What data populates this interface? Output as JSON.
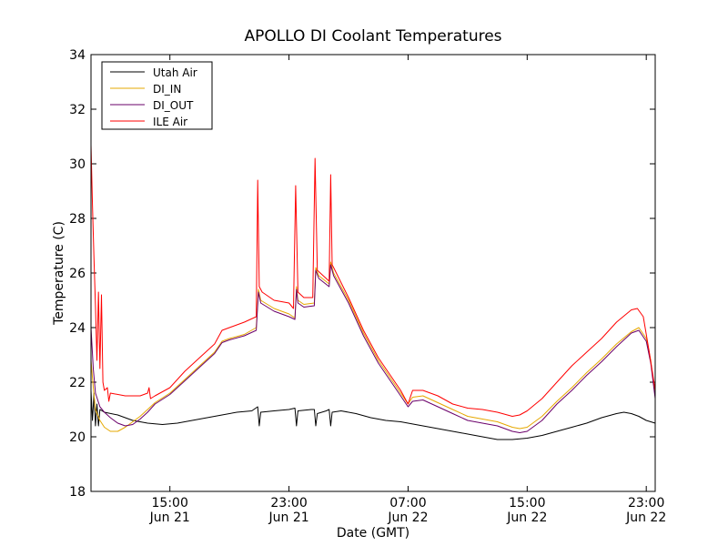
{
  "chart_data": {
    "type": "line",
    "title": "APOLLO DI Coolant Temperatures",
    "xlabel": "Date (GMT)",
    "ylabel": "Temperature (C)",
    "x_unit": "hours",
    "xlim": [
      9.7,
      47.6
    ],
    "ylim": [
      18,
      34
    ],
    "yticks": [
      18,
      20,
      22,
      24,
      26,
      28,
      30,
      32,
      34
    ],
    "xticks": [
      {
        "x": 15,
        "time": "15:00",
        "date": "Jun 21"
      },
      {
        "x": 23,
        "time": "23:00",
        "date": "Jun 21"
      },
      {
        "x": 31,
        "time": "07:00",
        "date": "Jun 22"
      },
      {
        "x": 39,
        "time": "15:00",
        "date": "Jun 22"
      },
      {
        "x": 47,
        "time": "23:00",
        "date": "Jun 22"
      }
    ],
    "legend_position": "top-left",
    "series": [
      {
        "name": "Utah Air",
        "color": "#000000",
        "points": [
          [
            9.7,
            21.7
          ],
          [
            9.8,
            20.6
          ],
          [
            9.9,
            21.6
          ],
          [
            10.0,
            20.4
          ],
          [
            10.1,
            21.2
          ],
          [
            10.2,
            20.4
          ],
          [
            10.3,
            21.0
          ],
          [
            10.6,
            20.9
          ],
          [
            11.5,
            20.8
          ],
          [
            12.5,
            20.6
          ],
          [
            13.5,
            20.5
          ],
          [
            14.5,
            20.45
          ],
          [
            15.5,
            20.5
          ],
          [
            16.5,
            20.6
          ],
          [
            17.5,
            20.7
          ],
          [
            18.5,
            20.8
          ],
          [
            19.5,
            20.9
          ],
          [
            20.5,
            20.95
          ],
          [
            20.9,
            21.1
          ],
          [
            21.0,
            20.4
          ],
          [
            21.1,
            20.9
          ],
          [
            22,
            20.95
          ],
          [
            23.0,
            21.0
          ],
          [
            23.4,
            21.05
          ],
          [
            23.5,
            20.4
          ],
          [
            23.6,
            20.95
          ],
          [
            24.5,
            21.0
          ],
          [
            24.7,
            21.0
          ],
          [
            24.8,
            20.4
          ],
          [
            24.9,
            20.85
          ],
          [
            25.5,
            20.95
          ],
          [
            25.7,
            21.0
          ],
          [
            25.8,
            20.4
          ],
          [
            25.9,
            20.9
          ],
          [
            26.5,
            20.95
          ],
          [
            27.5,
            20.85
          ],
          [
            28.5,
            20.7
          ],
          [
            29.5,
            20.6
          ],
          [
            30.5,
            20.55
          ],
          [
            31.5,
            20.45
          ],
          [
            32.5,
            20.35
          ],
          [
            33.5,
            20.25
          ],
          [
            34.5,
            20.15
          ],
          [
            35.5,
            20.05
          ],
          [
            36.5,
            19.95
          ],
          [
            37.0,
            19.9
          ],
          [
            38.0,
            19.9
          ],
          [
            39.0,
            19.95
          ],
          [
            40.0,
            20.05
          ],
          [
            41.0,
            20.2
          ],
          [
            42.0,
            20.35
          ],
          [
            43.0,
            20.5
          ],
          [
            44.0,
            20.7
          ],
          [
            45.0,
            20.85
          ],
          [
            45.5,
            20.9
          ],
          [
            46.0,
            20.85
          ],
          [
            46.5,
            20.75
          ],
          [
            47.0,
            20.6
          ],
          [
            47.6,
            20.5
          ]
        ]
      },
      {
        "name": "DI_IN",
        "color": "#e6a800",
        "points": [
          [
            9.7,
            22.8
          ],
          [
            9.85,
            21.8
          ],
          [
            10.0,
            21.0
          ],
          [
            10.3,
            20.6
          ],
          [
            10.6,
            20.35
          ],
          [
            11.0,
            20.2
          ],
          [
            11.5,
            20.2
          ],
          [
            12.0,
            20.35
          ],
          [
            12.5,
            20.55
          ],
          [
            13.0,
            20.75
          ],
          [
            13.5,
            21.0
          ],
          [
            14.0,
            21.25
          ],
          [
            15.0,
            21.6
          ],
          [
            16.0,
            22.1
          ],
          [
            17.0,
            22.6
          ],
          [
            18.0,
            23.1
          ],
          [
            18.5,
            23.5
          ],
          [
            19.0,
            23.6
          ],
          [
            20.0,
            23.75
          ],
          [
            20.8,
            24.0
          ],
          [
            20.95,
            25.4
          ],
          [
            21.1,
            25.0
          ],
          [
            22.0,
            24.7
          ],
          [
            23.0,
            24.5
          ],
          [
            23.4,
            24.35
          ],
          [
            23.5,
            25.5
          ],
          [
            23.6,
            25.0
          ],
          [
            24.0,
            24.85
          ],
          [
            24.7,
            24.9
          ],
          [
            24.8,
            26.2
          ],
          [
            25.0,
            25.9
          ],
          [
            25.7,
            25.6
          ],
          [
            25.8,
            26.4
          ],
          [
            26.0,
            26.0
          ],
          [
            27.0,
            25.0
          ],
          [
            28.0,
            23.8
          ],
          [
            29.0,
            22.8
          ],
          [
            30.0,
            22.0
          ],
          [
            30.5,
            21.6
          ],
          [
            31.0,
            21.2
          ],
          [
            31.3,
            21.45
          ],
          [
            32.0,
            21.5
          ],
          [
            33.0,
            21.25
          ],
          [
            34.0,
            21.0
          ],
          [
            35.0,
            20.75
          ],
          [
            36.0,
            20.65
          ],
          [
            37.0,
            20.55
          ],
          [
            38.0,
            20.35
          ],
          [
            38.5,
            20.3
          ],
          [
            39.0,
            20.35
          ],
          [
            40.0,
            20.75
          ],
          [
            41.0,
            21.3
          ],
          [
            42.0,
            21.8
          ],
          [
            43.0,
            22.35
          ],
          [
            44.0,
            22.85
          ],
          [
            45.0,
            23.4
          ],
          [
            46.0,
            23.85
          ],
          [
            46.5,
            24.0
          ],
          [
            47.0,
            23.6
          ],
          [
            47.3,
            22.8
          ],
          [
            47.6,
            21.5
          ]
        ]
      },
      {
        "name": "DI_OUT",
        "color": "#6a006a",
        "points": [
          [
            9.7,
            24.0
          ],
          [
            9.85,
            22.5
          ],
          [
            10.0,
            21.6
          ],
          [
            10.3,
            21.1
          ],
          [
            10.6,
            20.9
          ],
          [
            11.0,
            20.7
          ],
          [
            11.5,
            20.5
          ],
          [
            12.0,
            20.4
          ],
          [
            12.5,
            20.45
          ],
          [
            13.0,
            20.65
          ],
          [
            13.5,
            20.9
          ],
          [
            14.0,
            21.2
          ],
          [
            15.0,
            21.55
          ],
          [
            16.0,
            22.05
          ],
          [
            17.0,
            22.55
          ],
          [
            18.0,
            23.05
          ],
          [
            18.5,
            23.45
          ],
          [
            19.0,
            23.55
          ],
          [
            20.0,
            23.7
          ],
          [
            20.8,
            23.9
          ],
          [
            20.95,
            25.3
          ],
          [
            21.1,
            24.9
          ],
          [
            22.0,
            24.6
          ],
          [
            23.0,
            24.4
          ],
          [
            23.4,
            24.3
          ],
          [
            23.5,
            25.4
          ],
          [
            23.6,
            24.9
          ],
          [
            24.0,
            24.75
          ],
          [
            24.7,
            24.8
          ],
          [
            24.8,
            26.1
          ],
          [
            25.0,
            25.8
          ],
          [
            25.7,
            25.5
          ],
          [
            25.8,
            26.3
          ],
          [
            26.0,
            25.9
          ],
          [
            27.0,
            24.9
          ],
          [
            28.0,
            23.7
          ],
          [
            29.0,
            22.7
          ],
          [
            30.0,
            21.9
          ],
          [
            30.5,
            21.5
          ],
          [
            31.0,
            21.1
          ],
          [
            31.3,
            21.3
          ],
          [
            32.0,
            21.35
          ],
          [
            33.0,
            21.1
          ],
          [
            34.0,
            20.85
          ],
          [
            35.0,
            20.6
          ],
          [
            36.0,
            20.5
          ],
          [
            37.0,
            20.4
          ],
          [
            38.0,
            20.2
          ],
          [
            38.5,
            20.15
          ],
          [
            39.0,
            20.2
          ],
          [
            40.0,
            20.6
          ],
          [
            41.0,
            21.2
          ],
          [
            42.0,
            21.7
          ],
          [
            43.0,
            22.25
          ],
          [
            44.0,
            22.75
          ],
          [
            45.0,
            23.3
          ],
          [
            46.0,
            23.8
          ],
          [
            46.5,
            23.9
          ],
          [
            47.0,
            23.5
          ],
          [
            47.3,
            22.7
          ],
          [
            47.6,
            21.4
          ]
        ]
      },
      {
        "name": "ILE Air",
        "color": "#ff0000",
        "points": [
          [
            9.7,
            30.7
          ],
          [
            9.8,
            28.5
          ],
          [
            9.9,
            26.5
          ],
          [
            10.0,
            24.8
          ],
          [
            10.1,
            22.8
          ],
          [
            10.2,
            25.3
          ],
          [
            10.3,
            22.5
          ],
          [
            10.4,
            25.2
          ],
          [
            10.5,
            22.0
          ],
          [
            10.6,
            21.7
          ],
          [
            10.8,
            21.8
          ],
          [
            10.9,
            21.3
          ],
          [
            11.0,
            21.6
          ],
          [
            12.0,
            21.5
          ],
          [
            13.0,
            21.5
          ],
          [
            13.5,
            21.6
          ],
          [
            13.6,
            21.8
          ],
          [
            13.7,
            21.4
          ],
          [
            14.0,
            21.5
          ],
          [
            15.0,
            21.8
          ],
          [
            16.0,
            22.4
          ],
          [
            17.0,
            22.9
          ],
          [
            18.0,
            23.4
          ],
          [
            18.5,
            23.9
          ],
          [
            19.0,
            24.0
          ],
          [
            20.0,
            24.2
          ],
          [
            20.8,
            24.4
          ],
          [
            20.9,
            29.4
          ],
          [
            21.0,
            25.5
          ],
          [
            21.2,
            25.3
          ],
          [
            22.0,
            25.0
          ],
          [
            23.0,
            24.9
          ],
          [
            23.3,
            24.7
          ],
          [
            23.45,
            29.2
          ],
          [
            23.6,
            25.3
          ],
          [
            24.0,
            25.1
          ],
          [
            24.6,
            25.1
          ],
          [
            24.75,
            30.2
          ],
          [
            24.9,
            26.1
          ],
          [
            25.7,
            25.7
          ],
          [
            25.8,
            29.6
          ],
          [
            25.9,
            26.3
          ],
          [
            26.0,
            26.2
          ],
          [
            27.0,
            25.1
          ],
          [
            28.0,
            23.9
          ],
          [
            29.0,
            22.9
          ],
          [
            30.0,
            22.1
          ],
          [
            30.5,
            21.7
          ],
          [
            31.0,
            21.2
          ],
          [
            31.3,
            21.7
          ],
          [
            32.0,
            21.7
          ],
          [
            33.0,
            21.5
          ],
          [
            34.0,
            21.2
          ],
          [
            35.0,
            21.05
          ],
          [
            36.0,
            21.0
          ],
          [
            37.0,
            20.9
          ],
          [
            38.0,
            20.75
          ],
          [
            38.5,
            20.8
          ],
          [
            39.0,
            20.95
          ],
          [
            40.0,
            21.4
          ],
          [
            41.0,
            22.0
          ],
          [
            42.0,
            22.6
          ],
          [
            43.0,
            23.1
          ],
          [
            44.0,
            23.6
          ],
          [
            45.0,
            24.2
          ],
          [
            46.0,
            24.65
          ],
          [
            46.4,
            24.7
          ],
          [
            46.8,
            24.4
          ],
          [
            47.2,
            23.1
          ],
          [
            47.6,
            21.7
          ]
        ]
      }
    ]
  }
}
